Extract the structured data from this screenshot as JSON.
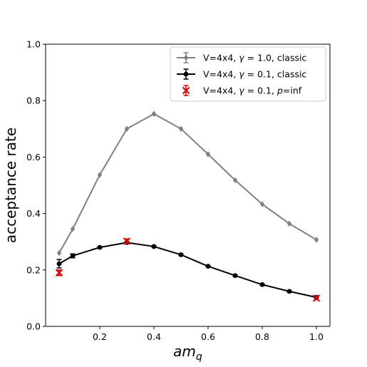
{
  "chart_data": {
    "type": "line",
    "xlabel_base": "am",
    "xlabel_sub": "q",
    "ylabel": "acceptance rate",
    "xlim": [
      0.0,
      1.05
    ],
    "ylim": [
      0.0,
      1.0
    ],
    "xticks": [
      0.2,
      0.4,
      0.6,
      0.8,
      1.0
    ],
    "xtick_labels": [
      "0.2",
      "0.4",
      "0.6",
      "0.8",
      "1.0"
    ],
    "yticks": [
      0.0,
      0.2,
      0.4,
      0.6,
      0.8,
      1.0
    ],
    "ytick_labels": [
      "0.0",
      "0.2",
      "0.4",
      "0.6",
      "0.8",
      "1.0"
    ],
    "grid": false,
    "legend_position": "top-right",
    "series": [
      {
        "legend_parts": [
          "V=4x4, ",
          "γ",
          " = 1.0, classic"
        ],
        "color": "#808080",
        "marker": "diamond",
        "line": true,
        "x": [
          0.05,
          0.1,
          0.2,
          0.3,
          0.4,
          0.5,
          0.6,
          0.7,
          0.8,
          0.9,
          1.0
        ],
        "y": [
          0.26,
          0.345,
          0.537,
          0.7,
          0.753,
          0.7,
          0.61,
          0.518,
          0.433,
          0.364,
          0.307
        ],
        "yerr": [
          0.0,
          0.0,
          0.0,
          0.0,
          0.0,
          0.0,
          0.0,
          0.0,
          0.0,
          0.0,
          0.0
        ]
      },
      {
        "legend_parts": [
          "V=4x4, ",
          "γ",
          " = 0.1, classic"
        ],
        "color": "#000000",
        "marker": "circle",
        "line": true,
        "x": [
          0.05,
          0.1,
          0.2,
          0.3,
          0.4,
          0.5,
          0.6,
          0.7,
          0.8,
          0.9,
          1.0
        ],
        "y": [
          0.222,
          0.25,
          0.28,
          0.297,
          0.283,
          0.254,
          0.213,
          0.18,
          0.148,
          0.124,
          0.103
        ],
        "yerr": [
          0.015,
          0.007,
          0.003,
          0.003,
          0.003,
          0.003,
          0.003,
          0.003,
          0.003,
          0.003,
          0.003
        ]
      },
      {
        "legend_parts": [
          "V=4x4, ",
          "γ",
          " = 0.1, ",
          "p",
          "=inf"
        ],
        "color": "#e00000",
        "marker": "x",
        "line": false,
        "x": [
          0.05,
          0.3,
          1.0
        ],
        "y": [
          0.19,
          0.302,
          0.1
        ],
        "yerr": [
          0.01,
          0.008,
          0.006
        ]
      }
    ]
  }
}
